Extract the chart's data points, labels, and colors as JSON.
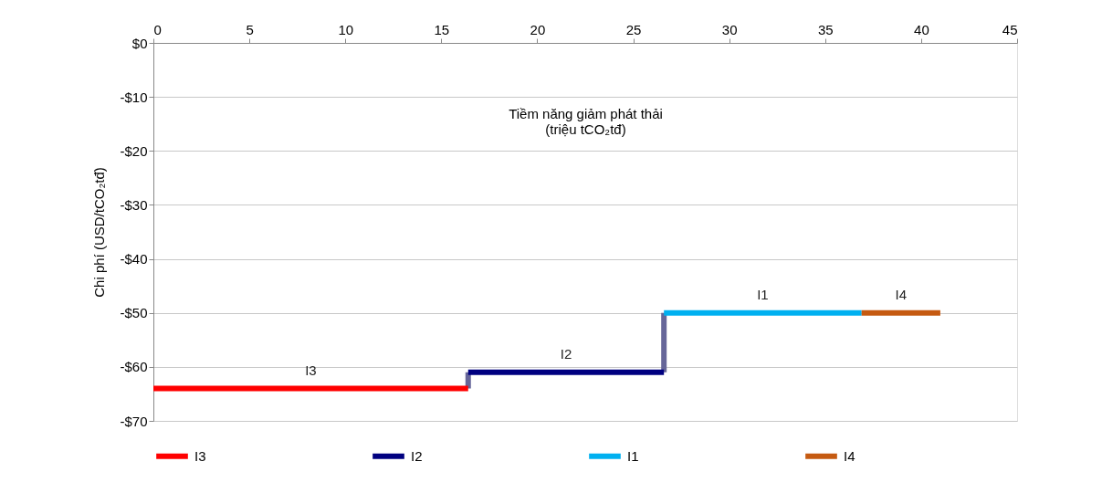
{
  "chart_data": {
    "type": "line",
    "xlabel": "Tiềm năng giảm phát thải\n(triệu tCO₂tđ)",
    "ylabel": "Chi phí (USD/tCO₂tđ)",
    "series": [
      {
        "name": "I3",
        "color": "#ff0000",
        "x": [
          0,
          16.4
        ],
        "values": [
          -64,
          -64
        ]
      },
      {
        "name": "I2",
        "color": "#000080",
        "x": [
          16.4,
          26.6
        ],
        "values": [
          -61,
          -61
        ]
      },
      {
        "name": "I1",
        "color": "#00b0f0",
        "x": [
          26.6,
          36.9
        ],
        "values": [
          -50,
          -50
        ]
      },
      {
        "name": "I4",
        "color": "#c55a11",
        "x": [
          36.9,
          41.0
        ],
        "values": [
          -50,
          -50
        ]
      },
      {
        "type": "step",
        "color": "#666699",
        "x": [
          16.4,
          16.4
        ],
        "values": [
          -64,
          -61
        ]
      },
      {
        "type": "step",
        "color": "#666699",
        "x": [
          26.6,
          26.6
        ],
        "values": [
          -61,
          -50
        ]
      }
    ],
    "annotations": [
      {
        "text": "I3",
        "x": 8.2,
        "y": -64
      },
      {
        "text": "I2",
        "x": 21.5,
        "y": -61
      },
      {
        "text": "I1",
        "x": 31.75,
        "y": -50
      },
      {
        "text": "I4",
        "x": 38.95,
        "y": -50
      }
    ],
    "xlim": [
      0,
      45
    ],
    "xticks": [
      0,
      5,
      10,
      15,
      20,
      25,
      30,
      35,
      40,
      45
    ],
    "ylim": [
      -70,
      0
    ],
    "yticks": [
      {
        "value": 0,
        "label": "$0"
      },
      {
        "value": -10,
        "label": "-$10"
      },
      {
        "value": -20,
        "label": "-$20"
      },
      {
        "value": -30,
        "label": "-$30"
      },
      {
        "value": -40,
        "label": "-$40"
      },
      {
        "value": -50,
        "label": "-$50"
      },
      {
        "value": -60,
        "label": "-$60"
      },
      {
        "value": -70,
        "label": "-$70"
      }
    ],
    "grid": "y",
    "legend": "bottom",
    "marker": "none",
    "line_style": "solid"
  }
}
